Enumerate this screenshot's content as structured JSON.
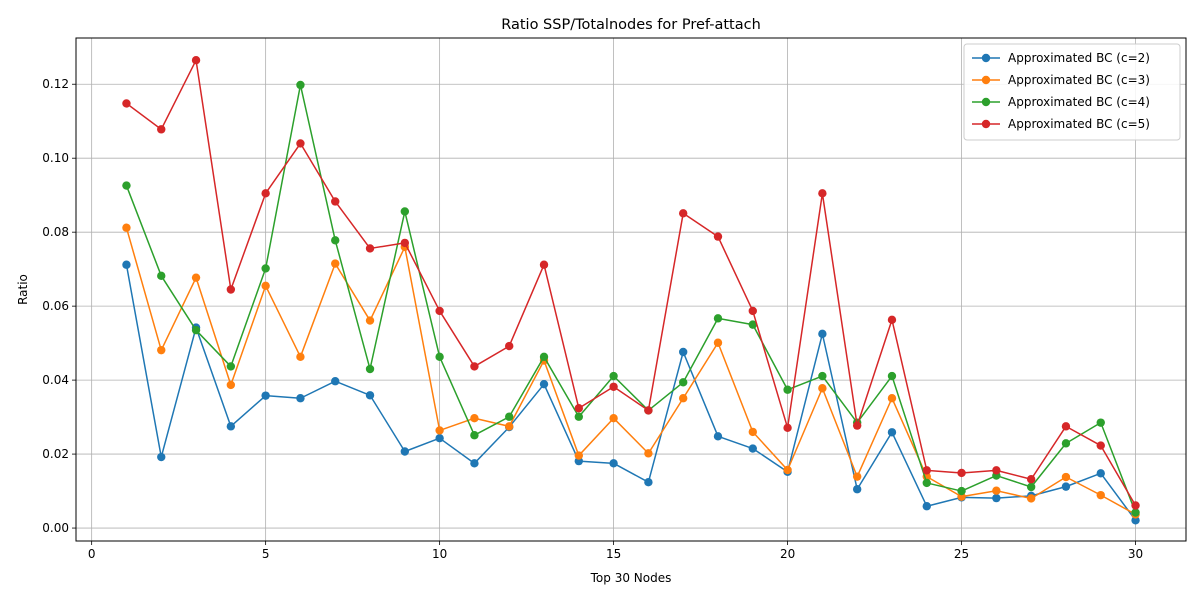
{
  "chart_data": {
    "type": "line",
    "title": "Ratio SSP/Totalnodes for Pref-attach",
    "xlabel": "Top 30 Nodes",
    "ylabel": "Ratio",
    "xlim": [
      -0.45,
      31.45
    ],
    "ylim": [
      -0.0035,
      0.1325
    ],
    "xticks": [
      0,
      5,
      10,
      15,
      20,
      25,
      30
    ],
    "yticks": [
      0.0,
      0.02,
      0.04,
      0.06,
      0.08,
      0.1,
      0.12
    ],
    "ytick_labels": [
      "0.00",
      "0.02",
      "0.04",
      "0.06",
      "0.08",
      "0.10",
      "0.12"
    ],
    "grid": true,
    "legend_position": "top-right",
    "x": [
      1,
      2,
      3,
      4,
      5,
      6,
      7,
      8,
      9,
      10,
      11,
      12,
      13,
      14,
      15,
      16,
      17,
      18,
      19,
      20,
      21,
      22,
      23,
      24,
      25,
      26,
      27,
      28,
      29,
      30
    ],
    "series": [
      {
        "name": "Approximated BC (c=2)",
        "color": "#1f77b4",
        "values": [
          0.0712,
          0.0192,
          0.0542,
          0.0275,
          0.0358,
          0.0351,
          0.0397,
          0.0359,
          0.0207,
          0.0243,
          0.0175,
          0.0273,
          0.0389,
          0.0181,
          0.0175,
          0.0124,
          0.0476,
          0.0248,
          0.0215,
          0.0152,
          0.0525,
          0.0105,
          0.0259,
          0.0059,
          0.0083,
          0.0081,
          0.0087,
          0.0112,
          0.0148,
          0.0021
        ]
      },
      {
        "name": "Approximated BC (c=3)",
        "color": "#ff7f0e",
        "values": [
          0.0812,
          0.0481,
          0.0677,
          0.0387,
          0.0655,
          0.0463,
          0.0715,
          0.0561,
          0.076,
          0.0264,
          0.0297,
          0.0275,
          0.0453,
          0.0196,
          0.0297,
          0.0202,
          0.0351,
          0.0501,
          0.026,
          0.0157,
          0.0378,
          0.0139,
          0.0351,
          0.0139,
          0.0085,
          0.0101,
          0.008,
          0.0138,
          0.0089,
          0.0037
        ]
      },
      {
        "name": "Approximated BC (c=4)",
        "color": "#2ca02c",
        "values": [
          0.0926,
          0.0682,
          0.0535,
          0.0437,
          0.0702,
          0.1198,
          0.0778,
          0.043,
          0.0856,
          0.0463,
          0.0251,
          0.0301,
          0.0463,
          0.0301,
          0.0411,
          0.0318,
          0.0394,
          0.0567,
          0.055,
          0.0374,
          0.0411,
          0.0285,
          0.0411,
          0.0122,
          0.01,
          0.0142,
          0.0111,
          0.0229,
          0.0285,
          0.0042
        ]
      },
      {
        "name": "Approximated BC (c=5)",
        "color": "#d62728",
        "values": [
          0.1148,
          0.1078,
          0.1265,
          0.0645,
          0.0905,
          0.104,
          0.0883,
          0.0756,
          0.0771,
          0.0587,
          0.0437,
          0.0492,
          0.0712,
          0.0324,
          0.0382,
          0.0318,
          0.0851,
          0.0788,
          0.0587,
          0.0271,
          0.0905,
          0.0277,
          0.0563,
          0.0156,
          0.0149,
          0.0156,
          0.0132,
          0.0275,
          0.0223,
          0.0061
        ]
      }
    ]
  }
}
